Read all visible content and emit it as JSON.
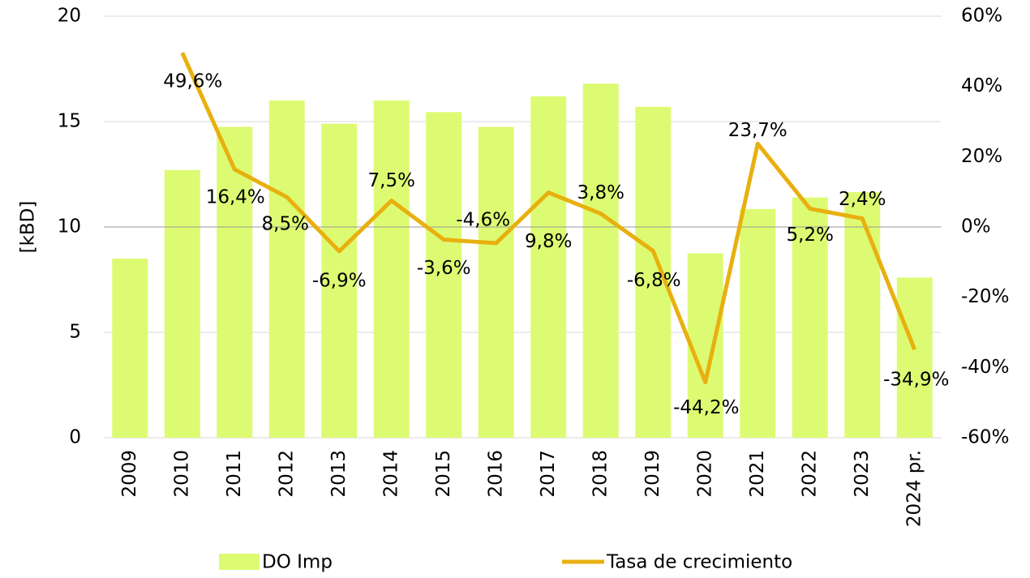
{
  "chart_data": {
    "type": "bar+line",
    "y_label": "[kBD]",
    "categories": [
      "2009",
      "2010",
      "2011",
      "2012",
      "2013",
      "2014",
      "2015",
      "2016",
      "2017",
      "2018",
      "2019",
      "2020",
      "2021",
      "2022",
      "2023",
      "2024 pr."
    ],
    "series": [
      {
        "name": "DO Imp",
        "type": "bar",
        "color": "#ddfb72",
        "values": [
          8.5,
          12.7,
          14.75,
          16.0,
          14.9,
          16.0,
          15.45,
          14.75,
          16.2,
          16.8,
          15.7,
          8.75,
          10.85,
          11.4,
          11.65,
          7.6
        ]
      },
      {
        "name": "Tasa de crecimiento",
        "type": "line",
        "axis": "y2",
        "color": "#e8b00f",
        "values": [
          null,
          49.6,
          16.4,
          8.5,
          -6.9,
          7.5,
          -3.6,
          -4.6,
          9.8,
          3.8,
          -6.8,
          -44.2,
          23.7,
          5.2,
          2.4,
          -34.9
        ],
        "value_labels": [
          null,
          "49,6%",
          "16,4%",
          "8,5%",
          "-6,9%",
          "7,5%",
          "-3,6%",
          "-4,6%",
          "9,8%",
          "3,8%",
          "-6,8%",
          "-44,2%",
          "23,7%",
          "5,2%",
          "2,4%",
          "-34,9%"
        ]
      }
    ],
    "ylim": [
      0,
      20
    ],
    "yticks": [
      0,
      5,
      10,
      15,
      20
    ],
    "y2lim": [
      -60,
      60
    ],
    "y2ticks": [
      {
        "value": -60,
        "label": "-60%"
      },
      {
        "value": -40,
        "label": "-40%"
      },
      {
        "value": -20,
        "label": "-20%"
      },
      {
        "value": 0,
        "label": "0%"
      },
      {
        "value": 20,
        "label": "20%"
      },
      {
        "value": 40,
        "label": "40%"
      },
      {
        "value": 60,
        "label": "60%"
      }
    ],
    "grid": true,
    "legend": "bottom"
  }
}
